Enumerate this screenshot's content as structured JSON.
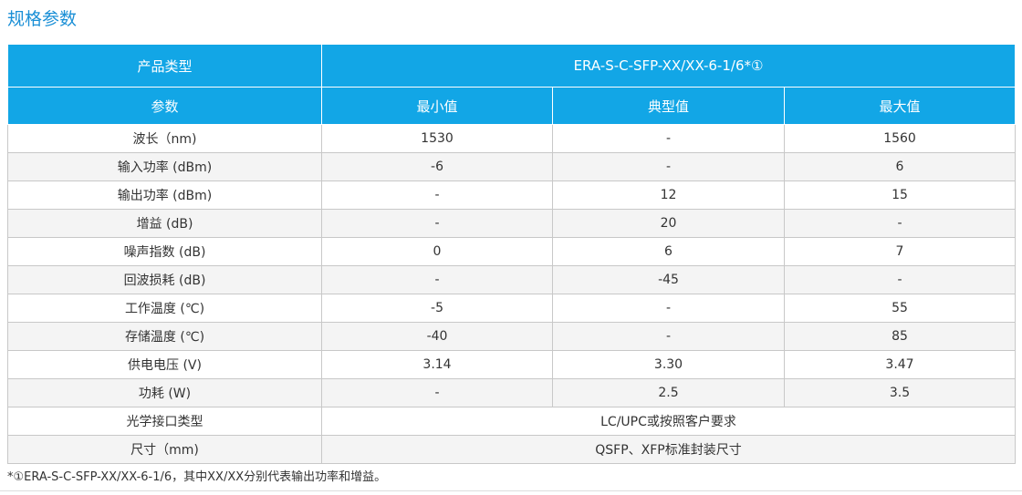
{
  "section_title": "规格参数",
  "header": {
    "product_type_label": "产品类型",
    "product_type_value": "ERA-S-C-SFP-XX/XX-6-1/6*①",
    "param_label": "参数",
    "min_label": "最小值",
    "typ_label": "典型值",
    "max_label": "最大值"
  },
  "rows": [
    {
      "param": "波长（nm)",
      "min": "1530",
      "typ": "-",
      "max": "1560"
    },
    {
      "param": "输入功率 (dBm)",
      "min": "-6",
      "typ": "-",
      "max": "6"
    },
    {
      "param": "输出功率 (dBm)",
      "min": "-",
      "typ": "12",
      "max": "15"
    },
    {
      "param": "增益 (dB)",
      "min": "-",
      "typ": "20",
      "max": "-"
    },
    {
      "param": "噪声指数 (dB)",
      "min": "0",
      "typ": "6",
      "max": "7"
    },
    {
      "param": "回波损耗 (dB)",
      "min": "-",
      "typ": "-45",
      "max": "-"
    },
    {
      "param": "工作温度 (℃)",
      "min": "-5",
      "typ": "-",
      "max": "55"
    },
    {
      "param": "存储温度 (℃)",
      "min": "-40",
      "typ": "-",
      "max": "85"
    },
    {
      "param": "供电电压 (V)",
      "min": "3.14",
      "typ": "3.30",
      "max": "3.47"
    },
    {
      "param": "功耗 (W)",
      "min": "-",
      "typ": "2.5",
      "max": "3.5"
    }
  ],
  "merged_rows": [
    {
      "param": "光学接口类型",
      "value": "LC/UPC或按照客户要求"
    },
    {
      "param": "尺寸（mm)",
      "value": "QSFP、XFP标准封装尺寸"
    }
  ],
  "footnote": "*①ERA-S-C-SFP-XX/XX-6-1/6，其中XX/XX分别代表输出功率和增益。"
}
